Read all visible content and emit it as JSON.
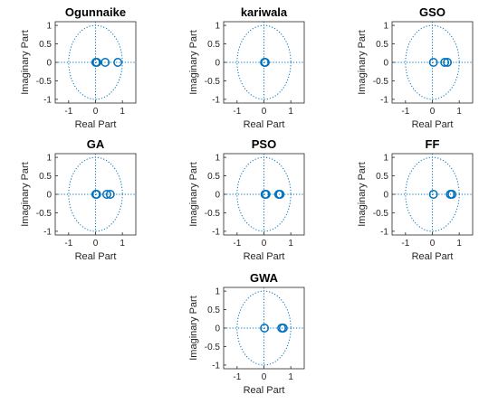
{
  "chart_data": [
    {
      "type": "scatter",
      "title": "Ogunnaike",
      "xlabel": "Real Part",
      "ylabel": "Imaginary Part",
      "xlim": [
        -1.5,
        1.5
      ],
      "ylim": [
        -1.1,
        1.1
      ],
      "xticks": [
        "-1",
        "0",
        "1"
      ],
      "yticks": [
        "1",
        "0.5",
        "0",
        "-0.5",
        "-1"
      ],
      "unit_circle": true,
      "zeros": [
        [
          0.01,
          0
        ],
        [
          0.05,
          0
        ],
        [
          0.36,
          0
        ],
        [
          0.83,
          0
        ]
      ]
    },
    {
      "type": "scatter",
      "title": "kariwala",
      "xlabel": "Real Part",
      "ylabel": "Imaginary Part",
      "xlim": [
        -1.5,
        1.5
      ],
      "ylim": [
        -1.1,
        1.1
      ],
      "xticks": [
        "-1",
        "0",
        "1"
      ],
      "yticks": [
        "1",
        "0.5",
        "0",
        "-0.5",
        "-1"
      ],
      "unit_circle": true,
      "zeros": [
        [
          0.02,
          0
        ],
        [
          0.05,
          0
        ]
      ]
    },
    {
      "type": "scatter",
      "title": "GSO",
      "xlabel": "Real Part",
      "ylabel": "Imaginary Part",
      "xlim": [
        -1.5,
        1.5
      ],
      "ylim": [
        -1.1,
        1.1
      ],
      "xticks": [
        "-1",
        "0",
        "1"
      ],
      "yticks": [
        "1",
        "0.5",
        "0",
        "-0.5",
        "-1"
      ],
      "unit_circle": true,
      "zeros": [
        [
          0.04,
          0
        ],
        [
          0.46,
          0
        ],
        [
          0.56,
          0
        ]
      ]
    },
    {
      "type": "scatter",
      "title": "GA",
      "xlabel": "Real Part",
      "ylabel": "Imaginary Part",
      "xlim": [
        -1.5,
        1.5
      ],
      "ylim": [
        -1.1,
        1.1
      ],
      "xticks": [
        "-1",
        "0",
        "1"
      ],
      "yticks": [
        "1",
        "0.5",
        "0",
        "-0.5",
        "-1"
      ],
      "unit_circle": true,
      "zeros": [
        [
          0.01,
          0
        ],
        [
          0.04,
          0
        ],
        [
          0.42,
          0
        ],
        [
          0.55,
          0
        ]
      ]
    },
    {
      "type": "scatter",
      "title": "PSO",
      "xlabel": "Real Part",
      "ylabel": "Imaginary Part",
      "xlim": [
        -1.5,
        1.5
      ],
      "ylim": [
        -1.1,
        1.1
      ],
      "xticks": [
        "-1",
        "0",
        "1"
      ],
      "yticks": [
        "1",
        "0.5",
        "0",
        "-0.5",
        "-1"
      ],
      "unit_circle": true,
      "zeros": [
        [
          0.04,
          0
        ],
        [
          0.08,
          0
        ],
        [
          0.55,
          0
        ],
        [
          0.6,
          0
        ]
      ]
    },
    {
      "type": "scatter",
      "title": "FF",
      "xlabel": "Real Part",
      "ylabel": "Imaginary Part",
      "xlim": [
        -1.5,
        1.5
      ],
      "ylim": [
        -1.1,
        1.1
      ],
      "xticks": [
        "-1",
        "0",
        "1"
      ],
      "yticks": [
        "1",
        "0.5",
        "0",
        "-0.5",
        "-1"
      ],
      "unit_circle": true,
      "zeros": [
        [
          0.04,
          0
        ],
        [
          0.67,
          0
        ],
        [
          0.73,
          0
        ]
      ]
    },
    {
      "type": "scatter",
      "title": "GWA",
      "xlabel": "Real Part",
      "ylabel": "Imaginary Part",
      "xlim": [
        -1.5,
        1.5
      ],
      "ylim": [
        -1.1,
        1.1
      ],
      "xticks": [
        "-1",
        "0",
        "1"
      ],
      "yticks": [
        "1",
        "0.5",
        "0",
        "-0.5",
        "-1"
      ],
      "unit_circle": true,
      "zeros": [
        [
          0.02,
          0
        ],
        [
          0.66,
          0
        ],
        [
          0.72,
          0
        ]
      ]
    }
  ],
  "colors": {
    "marker": "#0072BD",
    "guide": "#0072BD",
    "axis": "#262626",
    "text": "#000000"
  }
}
